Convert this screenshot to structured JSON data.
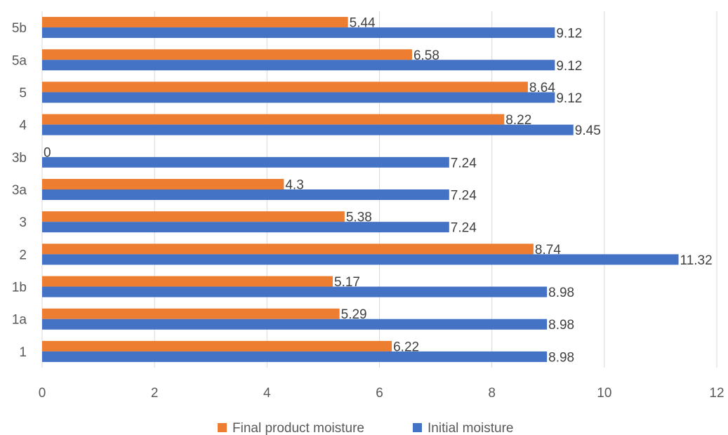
{
  "chart_data": {
    "type": "bar",
    "orientation": "horizontal",
    "categories": [
      "1",
      "1a",
      "1b",
      "2",
      "3",
      "3a",
      "3b",
      "4",
      "5",
      "5a",
      "5b"
    ],
    "series": [
      {
        "name": "Final product moisture",
        "color": "#ED7D31",
        "values": [
          6.22,
          5.29,
          5.17,
          8.74,
          5.38,
          4.3,
          0,
          8.22,
          8.64,
          6.58,
          5.44
        ],
        "labels": [
          "6.22",
          "5.29",
          "5.17",
          "8.74",
          "5.38",
          "4.3",
          "0",
          "8.22",
          "8.64",
          "6.58",
          "5.44"
        ]
      },
      {
        "name": "Initial moisture",
        "color": "#4472C4",
        "values": [
          8.98,
          8.98,
          8.98,
          11.32,
          7.24,
          7.24,
          7.24,
          9.45,
          9.12,
          9.12,
          9.12
        ],
        "labels": [
          "8.98",
          "8.98",
          "8.98",
          "11.32",
          "7.24",
          "7.24",
          "7.24",
          "9.45",
          "9.12",
          "9.12",
          "9.12"
        ]
      }
    ],
    "xlim": [
      0,
      12
    ],
    "xticks": [
      "0",
      "2",
      "4",
      "6",
      "8",
      "10",
      "12"
    ],
    "grid": true,
    "legend_position": "bottom",
    "title": "",
    "xlabel": "",
    "ylabel": ""
  }
}
